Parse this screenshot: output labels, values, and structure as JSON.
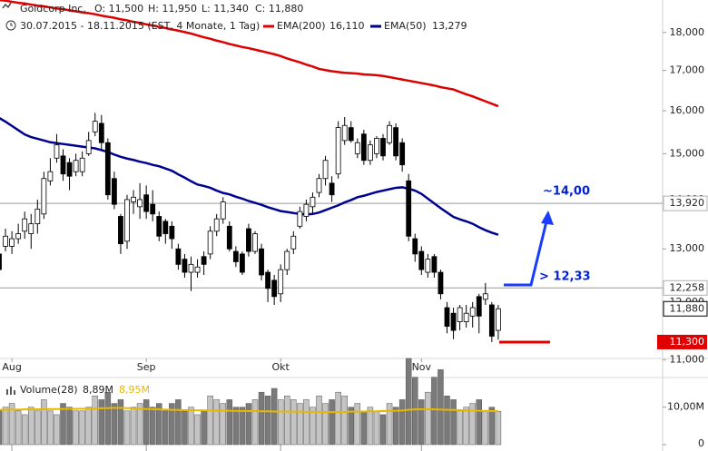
{
  "chart_data": [
    {
      "type": "candlestick",
      "title": "Goldcorp Inc.",
      "quote": [
        "O: 11,500",
        "H: 11,950",
        "L: 11,340",
        "C: 11,880"
      ],
      "subtitle": "30.07.2015 - 18.11.2015 (EST, 4 Monate, 1 Tag)",
      "log": true,
      "ylim": [
        10.95,
        18.9
      ],
      "yticks": [
        {
          "value": 18,
          "label": "18,000"
        },
        {
          "value": 17,
          "label": "17,000"
        },
        {
          "value": 16,
          "label": "16,000"
        },
        {
          "value": 15,
          "label": "15,000"
        },
        {
          "value": 14,
          "label": "14,000"
        },
        {
          "value": 13,
          "label": "13,000"
        },
        {
          "value": 12,
          "label": "12,000"
        },
        {
          "value": 11,
          "label": "11,000"
        }
      ],
      "categories": [
        null,
        null,
        "Aug",
        null,
        null,
        null,
        null,
        null,
        null,
        null,
        null,
        null,
        null,
        null,
        null,
        null,
        null,
        null,
        null,
        null,
        null,
        null,
        null,
        "Sep",
        null,
        null,
        null,
        null,
        null,
        null,
        null,
        null,
        null,
        null,
        null,
        null,
        null,
        null,
        null,
        null,
        null,
        null,
        null,
        null,
        "Okt",
        null,
        null,
        null,
        null,
        null,
        null,
        null,
        null,
        null,
        null,
        null,
        null,
        null,
        null,
        null,
        null,
        null,
        null,
        null,
        null,
        null,
        "Nov",
        null,
        null,
        null,
        null,
        null,
        null,
        null,
        null,
        null,
        null,
        null,
        null
      ],
      "open": [
        12.9,
        13.05,
        13.05,
        13.2,
        13.35,
        13.3,
        13.5,
        13.7,
        14.4,
        14.9,
        14.95,
        14.8,
        14.6,
        14.6,
        15.0,
        15.5,
        15.7,
        15.25,
        14.45,
        13.65,
        13.15,
        13.95,
        13.85,
        14.1,
        13.9,
        13.65,
        13.55,
        13.45,
        13.0,
        12.8,
        12.55,
        12.55,
        12.85,
        12.9,
        13.35,
        13.6,
        13.45,
        12.95,
        12.9,
        13.4,
        12.95,
        13.0,
        12.55,
        12.4,
        12.15,
        12.6,
        13.0,
        13.45,
        13.65,
        13.85,
        14.15,
        14.45,
        14.35,
        14.55,
        15.3,
        15.6,
        15.0,
        15.45,
        14.85,
        15.0,
        15.35,
        15.25,
        15.6,
        15.25,
        14.4,
        13.2,
        12.95,
        12.55,
        12.85,
        12.55,
        11.9,
        11.8,
        11.65,
        11.65,
        11.75,
        12.1,
        12.05,
        11.95,
        11.5
      ],
      "high": [
        13.0,
        13.4,
        13.35,
        13.5,
        13.75,
        13.7,
        14.0,
        14.6,
        14.9,
        15.45,
        15.1,
        14.9,
        15.0,
        15.05,
        15.5,
        15.95,
        15.9,
        15.35,
        14.6,
        13.7,
        14.1,
        14.2,
        14.35,
        14.3,
        14.2,
        13.75,
        13.6,
        13.55,
        13.1,
        12.9,
        12.85,
        12.8,
        12.95,
        13.45,
        13.7,
        14.05,
        13.55,
        13.05,
        12.95,
        13.5,
        13.35,
        13.1,
        12.6,
        12.5,
        12.7,
        13.0,
        13.35,
        13.85,
        14.0,
        14.15,
        14.55,
        14.95,
        14.5,
        15.75,
        15.85,
        15.75,
        15.35,
        15.55,
        15.3,
        15.4,
        15.45,
        15.75,
        15.7,
        15.35,
        14.55,
        13.3,
        13.05,
        12.9,
        12.9,
        12.6,
        12.0,
        11.9,
        11.95,
        11.95,
        12.0,
        12.15,
        12.35,
        12.0,
        11.95
      ],
      "low": [
        12.5,
        12.95,
        12.9,
        13.1,
        13.2,
        13.0,
        13.3,
        13.6,
        14.3,
        14.8,
        14.4,
        14.2,
        14.5,
        14.5,
        14.95,
        15.4,
        15.1,
        14.0,
        13.8,
        12.9,
        13.0,
        13.7,
        13.6,
        13.6,
        13.55,
        13.15,
        13.1,
        13.0,
        12.6,
        12.45,
        12.2,
        12.45,
        12.5,
        12.8,
        13.25,
        13.5,
        12.95,
        12.65,
        12.5,
        12.85,
        12.9,
        12.4,
        12.0,
        11.95,
        12.0,
        12.5,
        12.9,
        13.4,
        13.55,
        13.7,
        14.05,
        14.3,
        13.95,
        14.45,
        15.2,
        15.25,
        14.9,
        14.75,
        14.75,
        14.9,
        14.85,
        15.2,
        14.85,
        14.6,
        13.15,
        12.75,
        12.5,
        12.45,
        12.45,
        12.05,
        11.45,
        11.35,
        11.5,
        11.55,
        11.55,
        11.45,
        11.95,
        11.3,
        11.34
      ],
      "close": [
        12.6,
        13.25,
        13.2,
        13.3,
        13.6,
        13.5,
        13.8,
        14.45,
        14.6,
        15.2,
        14.55,
        14.5,
        14.85,
        14.9,
        15.3,
        15.75,
        15.25,
        14.1,
        13.9,
        13.1,
        14.0,
        14.05,
        14.0,
        13.75,
        13.7,
        13.25,
        13.3,
        13.2,
        12.7,
        12.55,
        12.7,
        12.65,
        12.7,
        13.35,
        13.6,
        13.95,
        13.0,
        12.75,
        12.55,
        12.95,
        13.3,
        12.5,
        12.25,
        12.1,
        12.6,
        12.95,
        13.25,
        13.75,
        13.9,
        14.05,
        14.45,
        14.85,
        14.1,
        15.6,
        15.65,
        15.3,
        15.25,
        14.85,
        15.2,
        15.35,
        14.95,
        15.65,
        14.95,
        14.75,
        13.25,
        12.9,
        12.6,
        12.8,
        12.55,
        12.15,
        11.57,
        11.5,
        11.9,
        11.8,
        11.9,
        11.75,
        12.15,
        11.4,
        11.88
      ],
      "up_color": "#ffffff",
      "down_color": "#000000",
      "series": [
        {
          "name": "EMA(200)",
          "color": "#dd0000",
          "value_label": "16,110",
          "values": [
            18.9,
            18.88,
            18.85,
            18.82,
            18.8,
            18.77,
            18.74,
            18.72,
            18.69,
            18.66,
            18.64,
            18.61,
            18.58,
            18.55,
            18.53,
            18.5,
            18.46,
            18.43,
            18.4,
            18.36,
            18.33,
            18.29,
            18.26,
            18.22,
            18.19,
            18.15,
            18.12,
            18.08,
            18.05,
            18.01,
            17.97,
            17.92,
            17.87,
            17.83,
            17.78,
            17.74,
            17.69,
            17.65,
            17.61,
            17.58,
            17.54,
            17.5,
            17.46,
            17.42,
            17.37,
            17.31,
            17.26,
            17.21,
            17.15,
            17.1,
            17.04,
            17.01,
            16.98,
            16.96,
            16.94,
            16.93,
            16.92,
            16.9,
            16.89,
            16.88,
            16.86,
            16.83,
            16.8,
            16.77,
            16.74,
            16.71,
            16.68,
            16.65,
            16.62,
            16.58,
            16.55,
            16.52,
            16.46,
            16.4,
            16.35,
            16.29,
            16.23,
            16.17,
            16.11
          ]
        },
        {
          "name": "EMA(50)",
          "color": "#000090",
          "value_label": "13,279",
          "values": [
            15.83,
            15.74,
            15.64,
            15.54,
            15.44,
            15.38,
            15.34,
            15.3,
            15.26,
            15.24,
            15.22,
            15.2,
            15.18,
            15.16,
            15.14,
            15.12,
            15.08,
            15.04,
            14.98,
            14.93,
            14.89,
            14.86,
            14.82,
            14.79,
            14.75,
            14.72,
            14.67,
            14.62,
            14.54,
            14.47,
            14.39,
            14.32,
            14.29,
            14.25,
            14.19,
            14.14,
            14.11,
            14.06,
            14.02,
            13.97,
            13.93,
            13.89,
            13.84,
            13.8,
            13.76,
            13.74,
            13.72,
            13.7,
            13.69,
            13.7,
            13.73,
            13.78,
            13.83,
            13.88,
            13.94,
            13.99,
            14.05,
            14.08,
            14.12,
            14.16,
            14.19,
            14.22,
            14.25,
            14.26,
            14.23,
            14.19,
            14.12,
            14.02,
            13.92,
            13.82,
            13.73,
            13.64,
            13.59,
            13.55,
            13.5,
            13.43,
            13.37,
            13.32,
            13.279
          ]
        }
      ],
      "levels": [
        {
          "value": 13.92,
          "label": "13,920"
        },
        {
          "value": 12.258,
          "label": "12,258"
        }
      ],
      "last_price": {
        "value": 11.88,
        "label": "11,880"
      },
      "support": {
        "value": 11.3,
        "label": "11,300",
        "color": "#e00000"
      },
      "annotations": [
        "~14,00",
        "> 12,33"
      ]
    },
    {
      "type": "bar",
      "title": "Volume(28)",
      "value_label": "8,89M",
      "ylim": [
        0,
        23
      ],
      "yticks": [
        0,
        {
          "value": 10,
          "label": "10,00M"
        }
      ],
      "up_color": "#c4c4c4",
      "down_color": "#7a7a7a",
      "values": [
        9,
        10,
        11,
        9,
        8,
        10,
        9,
        12,
        9,
        8,
        11,
        10,
        9,
        9,
        10,
        13,
        12,
        14,
        11,
        12,
        9,
        10,
        11,
        12,
        10,
        11,
        9,
        11,
        12,
        9,
        10,
        8,
        9,
        13,
        12,
        11,
        12,
        10,
        10,
        11,
        12,
        14,
        13,
        15,
        12,
        13,
        12,
        11,
        12,
        10,
        13,
        11,
        12,
        14,
        13,
        10,
        11,
        9,
        10,
        9,
        8,
        11,
        10,
        12,
        23,
        18,
        12,
        14,
        18,
        20,
        13,
        12,
        9,
        10,
        11,
        12,
        9,
        10,
        8.89
      ],
      "line": {
        "color": "#e8b800",
        "value_label": "8,95M",
        "values": [
          9.3,
          9.3,
          9.35,
          9.35,
          9.4,
          9.4,
          9.45,
          9.45,
          9.5,
          9.5,
          9.5,
          9.55,
          9.55,
          9.6,
          9.6,
          9.65,
          9.7,
          9.75,
          9.8,
          9.8,
          9.75,
          9.7,
          9.6,
          9.5,
          9.45,
          9.4,
          9.35,
          9.3,
          9.25,
          9.2,
          9.2,
          9.15,
          9.15,
          9.1,
          9.1,
          9.05,
          9.05,
          9.0,
          9.0,
          8.95,
          8.95,
          8.9,
          8.9,
          8.85,
          8.85,
          8.8,
          8.8,
          8.8,
          8.75,
          8.75,
          8.75,
          8.7,
          8.7,
          8.7,
          8.75,
          8.8,
          8.8,
          8.85,
          8.9,
          8.9,
          8.95,
          9.0,
          9.05,
          9.1,
          9.3,
          9.4,
          9.45,
          9.45,
          9.4,
          9.35,
          9.3,
          9.25,
          9.2,
          9.15,
          9.1,
          9.05,
          9.0,
          8.95,
          8.95
        ]
      }
    }
  ]
}
